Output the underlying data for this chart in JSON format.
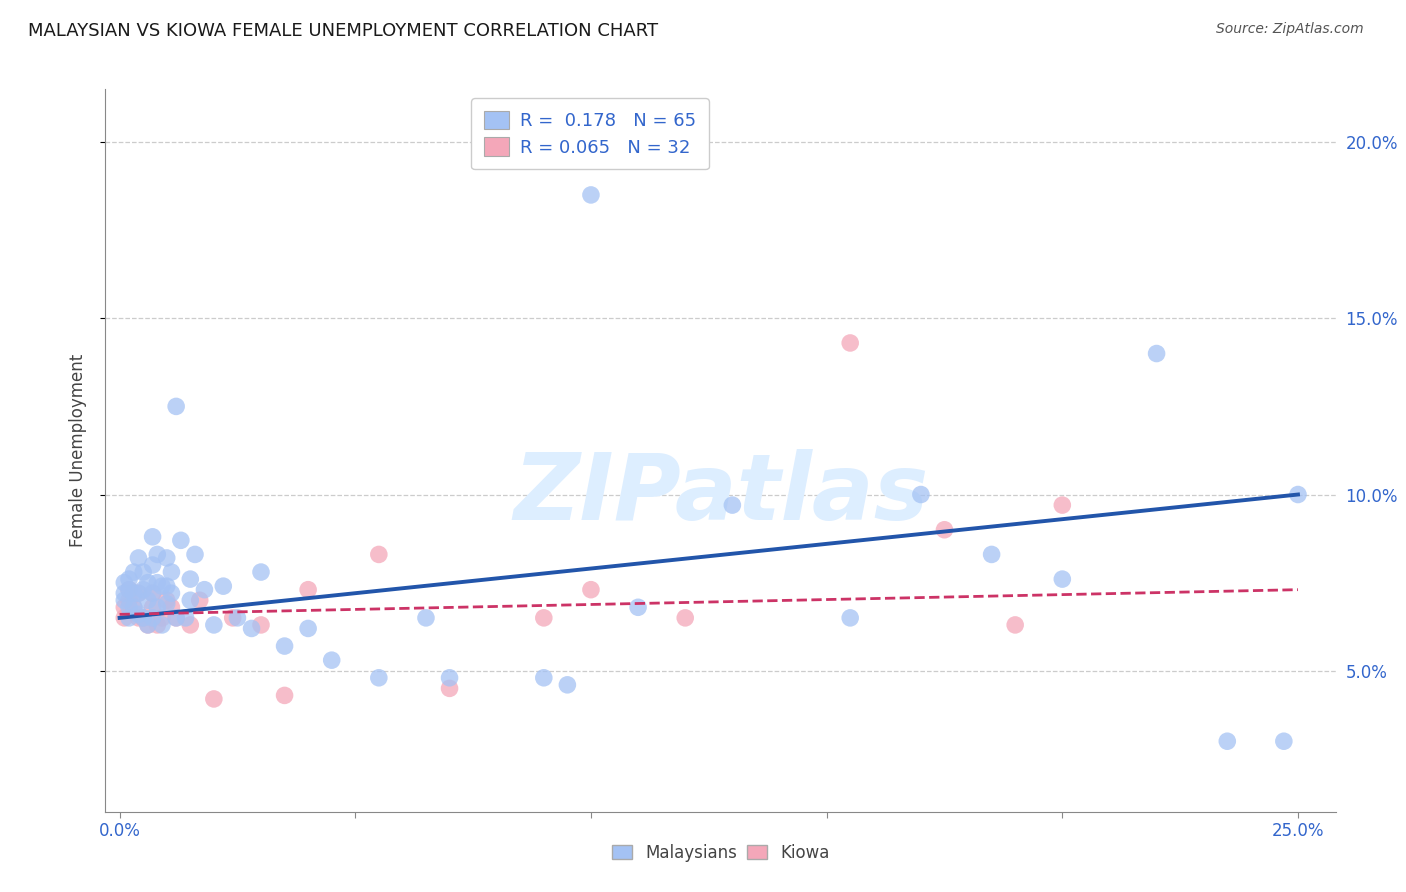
{
  "title": "MALAYSIAN VS KIOWA FEMALE UNEMPLOYMENT CORRELATION CHART",
  "source": "Source: ZipAtlas.com",
  "ylabel": "Female Unemployment",
  "xlim": [
    -0.003,
    0.258
  ],
  "ylim": [
    0.01,
    0.215
  ],
  "xtick_positions": [
    0.0,
    0.05,
    0.1,
    0.15,
    0.2,
    0.25
  ],
  "xtick_labels": [
    "0.0%",
    "",
    "",
    "",
    "",
    "25.0%"
  ],
  "ytick_positions": [
    0.05,
    0.1,
    0.15,
    0.2
  ],
  "ytick_labels": [
    "5.0%",
    "10.0%",
    "15.0%",
    "20.0%"
  ],
  "malaysian_R": 0.178,
  "malaysian_N": 65,
  "kiowa_R": 0.065,
  "kiowa_N": 32,
  "malaysian_color": "#a4c2f4",
  "kiowa_color": "#f4a7b9",
  "trend_blue": "#2255aa",
  "trend_pink": "#cc3366",
  "watermark_text": "ZIPatlas",
  "background_color": "#ffffff",
  "grid_color": "#cccccc",
  "malaysian_x": [
    0.001,
    0.001,
    0.001,
    0.002,
    0.002,
    0.002,
    0.002,
    0.003,
    0.003,
    0.003,
    0.004,
    0.004,
    0.004,
    0.005,
    0.005,
    0.005,
    0.006,
    0.006,
    0.006,
    0.007,
    0.007,
    0.007,
    0.007,
    0.008,
    0.008,
    0.008,
    0.009,
    0.009,
    0.01,
    0.01,
    0.01,
    0.011,
    0.011,
    0.012,
    0.012,
    0.013,
    0.014,
    0.015,
    0.015,
    0.016,
    0.018,
    0.02,
    0.022,
    0.025,
    0.028,
    0.03,
    0.035,
    0.04,
    0.045,
    0.055,
    0.065,
    0.07,
    0.09,
    0.095,
    0.1,
    0.11,
    0.13,
    0.155,
    0.17,
    0.185,
    0.2,
    0.22,
    0.235,
    0.247,
    0.25
  ],
  "malaysian_y": [
    0.07,
    0.072,
    0.075,
    0.065,
    0.068,
    0.073,
    0.076,
    0.068,
    0.072,
    0.078,
    0.066,
    0.072,
    0.082,
    0.065,
    0.073,
    0.078,
    0.063,
    0.07,
    0.075,
    0.065,
    0.072,
    0.08,
    0.088,
    0.068,
    0.075,
    0.083,
    0.063,
    0.074,
    0.069,
    0.074,
    0.082,
    0.072,
    0.078,
    0.125,
    0.065,
    0.087,
    0.065,
    0.07,
    0.076,
    0.083,
    0.073,
    0.063,
    0.074,
    0.065,
    0.062,
    0.078,
    0.057,
    0.062,
    0.053,
    0.048,
    0.065,
    0.048,
    0.048,
    0.046,
    0.185,
    0.068,
    0.097,
    0.065,
    0.1,
    0.083,
    0.076,
    0.14,
    0.03,
    0.03,
    0.1
  ],
  "kiowa_x": [
    0.001,
    0.001,
    0.002,
    0.002,
    0.003,
    0.004,
    0.004,
    0.005,
    0.006,
    0.007,
    0.007,
    0.008,
    0.009,
    0.01,
    0.011,
    0.012,
    0.015,
    0.017,
    0.02,
    0.024,
    0.03,
    0.035,
    0.04,
    0.055,
    0.07,
    0.09,
    0.1,
    0.12,
    0.155,
    0.175,
    0.19,
    0.2
  ],
  "kiowa_y": [
    0.065,
    0.068,
    0.07,
    0.073,
    0.068,
    0.065,
    0.072,
    0.065,
    0.063,
    0.068,
    0.072,
    0.063,
    0.065,
    0.07,
    0.068,
    0.065,
    0.063,
    0.07,
    0.042,
    0.065,
    0.063,
    0.043,
    0.073,
    0.083,
    0.045,
    0.065,
    0.073,
    0.065,
    0.143,
    0.09,
    0.063,
    0.097
  ],
  "trend_blue_x0": 0.0,
  "trend_blue_y0": 0.065,
  "trend_blue_x1": 0.25,
  "trend_blue_y1": 0.1,
  "trend_pink_x0": 0.0,
  "trend_pink_y0": 0.066,
  "trend_pink_x1": 0.25,
  "trend_pink_y1": 0.073
}
